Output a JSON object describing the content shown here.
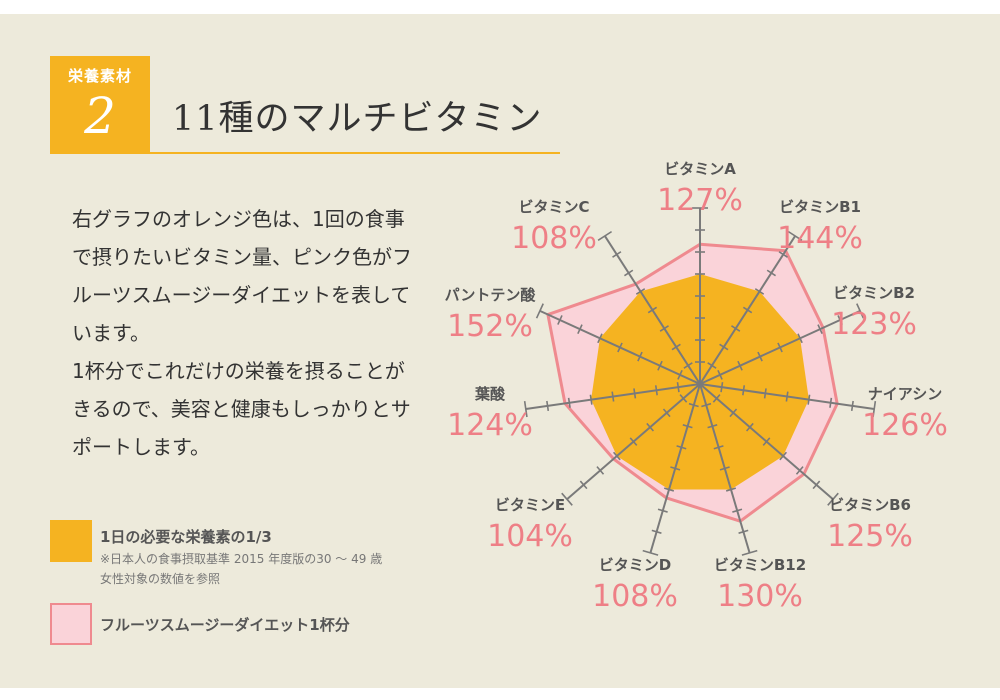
{
  "badge": {
    "caption": "栄養素材",
    "number": "2"
  },
  "title": "11種のマルチビタミン",
  "description": [
    "右グラフのオレンジ色は、1回の食事で摂りたいビタミン量、ピンク色がフルーツスムージーダイエットを表しています。",
    "1杯分でこれだけの栄養を摂ることがきるので、美容と健康もしっかりとサポートします。"
  ],
  "legend": {
    "orange_label": "1日の必要な栄養素の1/3",
    "orange_note": "※日本人の食事摂取基準 2015 年度版の30 〜 49 歳女性対象の数値を参照",
    "pink_label": "フルーツスムージーダイエット1杯分"
  },
  "colors": {
    "orange": "#f5b321",
    "pink_fill": "#fad3d9",
    "pink_line": "#ef8a8f",
    "value_text": "#ee7f86",
    "background": "#edeadb"
  },
  "chart_data": {
    "type": "radar",
    "baseline": 100,
    "max": 160,
    "categories": [
      "ビタミンA",
      "ビタミンB1",
      "ビタミンB2",
      "ナイアシン",
      "ビタミンB6",
      "ビタミンB12",
      "ビタミンD",
      "ビタミンE",
      "葉酸",
      "パントテン酸",
      "ビタミンC"
    ],
    "values": [
      127,
      144,
      123,
      126,
      125,
      130,
      108,
      104,
      124,
      152,
      108
    ],
    "value_labels": [
      "127%",
      "144%",
      "123%",
      "126%",
      "125%",
      "130%",
      "108%",
      "104%",
      "124%",
      "152%",
      "108%"
    ]
  }
}
